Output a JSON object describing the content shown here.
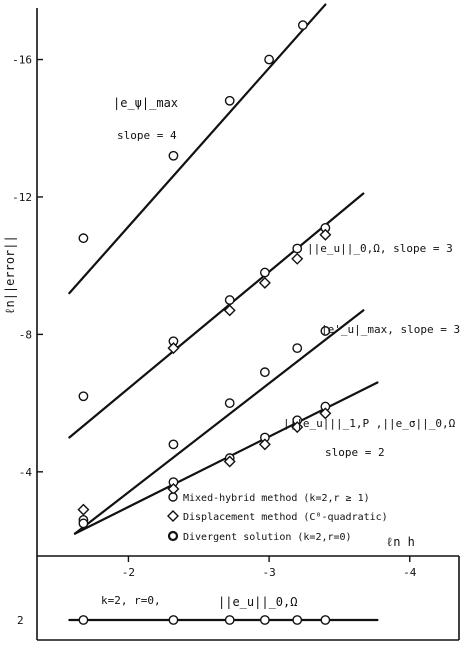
{
  "chart_data": [
    {
      "type": "scatter",
      "xlabel": "ℓn h",
      "ylabel": "ℓn||error||",
      "xlim": [
        -1.35,
        -4.35
      ],
      "ylim": [
        -1.55,
        -17.5
      ],
      "x_ticks": [
        -2,
        -3,
        -4
      ],
      "x_tick_labels": [
        "-2",
        "-3",
        "-4"
      ],
      "y_ticks": [
        -4,
        -8,
        -12,
        -16
      ],
      "y_tick_labels": [
        "-4",
        "-8",
        "-12",
        "-16"
      ],
      "grid": false,
      "series": [
        {
          "label": "|e_ψ|_max",
          "marker": "circle",
          "points": [
            [
              -1.68,
              -10.8
            ],
            [
              -2.32,
              -13.2
            ],
            [
              -2.72,
              -14.8
            ],
            [
              -3.0,
              -16.0
            ],
            [
              -3.24,
              -17.0
            ]
          ],
          "fit": [
            [
              -1.58,
              -9.2
            ],
            [
              -3.4,
              -17.6
            ]
          ],
          "annotation": "slope = 4"
        },
        {
          "label": "||e_u||_0,Ω",
          "marker": "circle",
          "points": [
            [
              -1.68,
              -6.2
            ],
            [
              -2.32,
              -7.8
            ],
            [
              -2.72,
              -9.0
            ],
            [
              -2.97,
              -9.8
            ],
            [
              -3.2,
              -10.5
            ],
            [
              -3.4,
              -11.1
            ]
          ],
          "fit": [
            [
              -1.58,
              -5.0
            ],
            [
              -3.67,
              -12.1
            ]
          ],
          "annotation": "slope = 3"
        },
        {
          "label": "||e_u||_0,Ω (diamond)",
          "marker": "diamond",
          "points": [
            [
              -2.32,
              -7.6
            ],
            [
              -2.72,
              -8.7
            ],
            [
              -2.97,
              -9.5
            ],
            [
              -3.2,
              -10.2
            ],
            [
              -3.4,
              -10.9
            ]
          ],
          "fit": null
        },
        {
          "label": "|e'_u|_max",
          "marker": "circle",
          "points": [
            [
              -1.68,
              -2.6
            ],
            [
              -2.32,
              -4.8
            ],
            [
              -2.72,
              -6.0
            ],
            [
              -2.97,
              -6.9
            ],
            [
              -3.2,
              -7.6
            ],
            [
              -3.4,
              -8.1
            ]
          ],
          "fit": [
            [
              -1.62,
              -2.2
            ],
            [
              -3.67,
              -8.7
            ]
          ],
          "annotation": "slope = 3"
        },
        {
          "label": "|||e_u|||_1,P , ||e_σ||_0,Ω",
          "marker": "circle",
          "points": [
            [
              -1.68,
              -2.5
            ],
            [
              -2.32,
              -3.7
            ],
            [
              -2.72,
              -4.4
            ],
            [
              -2.97,
              -5.0
            ],
            [
              -3.2,
              -5.5
            ],
            [
              -3.4,
              -5.9
            ]
          ],
          "fit": [
            [
              -1.62,
              -2.2
            ],
            [
              -3.77,
              -6.6
            ]
          ],
          "annotation": "slope = 2"
        },
        {
          "label": "|||e_u|||_1,P (diamond)",
          "marker": "diamond",
          "points": [
            [
              -1.68,
              -2.9
            ],
            [
              -2.32,
              -3.5
            ],
            [
              -2.72,
              -4.3
            ],
            [
              -2.97,
              -4.8
            ],
            [
              -3.2,
              -5.3
            ],
            [
              -3.4,
              -5.7
            ]
          ],
          "fit": null
        }
      ],
      "legend": {
        "placement": "bottom",
        "entries": [
          {
            "marker": "circle",
            "text": "Mixed-hybrid method (k=2,r ≥ 1)"
          },
          {
            "marker": "diamond",
            "text": "Displacement method (C⁰-quadratic)"
          },
          {
            "marker": "circle-bold",
            "text": "Divergent solution (k=2,r=0)"
          }
        ]
      },
      "annotations": {
        "epsi_label": "|e_ψ|_max",
        "epsi_slope": "slope = 4",
        "eu0_label": "||e_u||_0,Ω,  slope = 3",
        "eup_label": "|e'_u|_max,  slope = 3",
        "energy_label": "|||e_u|||_1,P ,||e_σ||_0,Ω",
        "energy_slope": "slope = 2"
      }
    },
    {
      "type": "line",
      "annotation": "k=2,  r=0,",
      "series_label": "||e_u||_0,Ω",
      "y_ticks": [
        2
      ],
      "y_tick_labels": [
        "2"
      ],
      "points": [
        [
          -1.68,
          2
        ],
        [
          -2.32,
          2
        ],
        [
          -2.72,
          2
        ],
        [
          -2.97,
          2
        ],
        [
          -3.2,
          2
        ],
        [
          -3.4,
          2
        ]
      ],
      "fit": [
        [
          -1.58,
          2
        ],
        [
          -3.77,
          2
        ]
      ]
    }
  ]
}
